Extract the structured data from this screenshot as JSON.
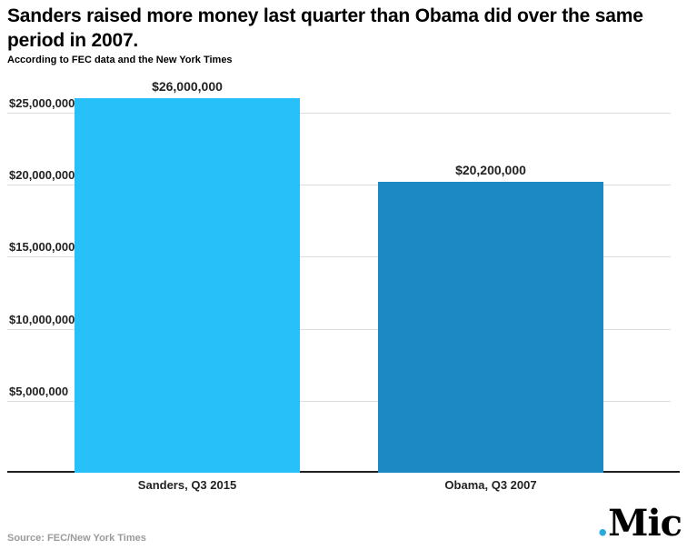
{
  "header": {
    "title": "Sanders raised more money last quarter than Obama did over the same period in 2007.",
    "subtitle": "According to FEC data and the New York Times"
  },
  "chart_data": {
    "type": "bar",
    "categories": [
      "Sanders, Q3 2015",
      "Obama, Q3 2007"
    ],
    "values": [
      26000000,
      20200000
    ],
    "value_labels": [
      "$26,000,000",
      "$20,200,000"
    ],
    "bar_colors": [
      "#27c0f8",
      "#1d89c4"
    ],
    "title": "Sanders raised more money last quarter than Obama did over the same period in 2007.",
    "subtitle": "According to FEC data and the New York Times",
    "xlabel": "",
    "ylabel": "",
    "ylim": [
      0,
      26500000
    ],
    "yticks": [
      5000000,
      10000000,
      15000000,
      20000000,
      25000000
    ],
    "ytick_labels": [
      "$5,000,000",
      "$10,000,000",
      "$15,000,000",
      "$20,000,000",
      "$25,000,000"
    ],
    "grid": true,
    "legend": false
  },
  "footer": {
    "source": "Source: FEC/New York Times",
    "logo": {
      "dot": ".",
      "text": "Mic",
      "dot_color": "#2aa9e0"
    }
  }
}
